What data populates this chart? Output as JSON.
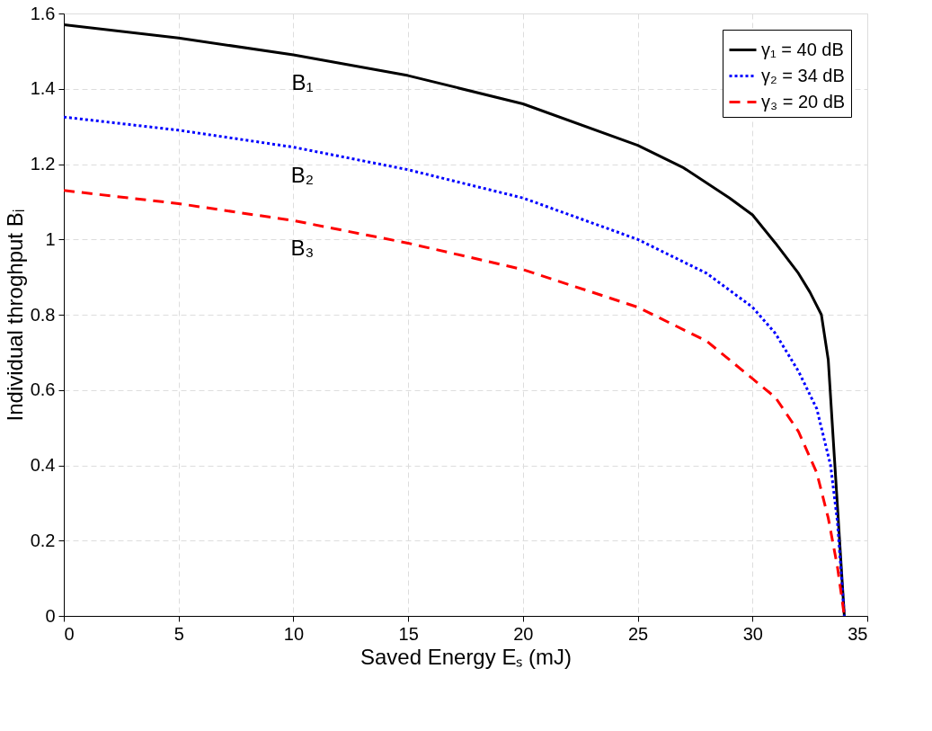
{
  "chart_data": {
    "type": "line",
    "xlabel": "Saved Energy Eₛ (mJ)",
    "ylabel": "Individual throghput Bᵢ",
    "xlim": [
      0,
      35
    ],
    "xticks": [
      0,
      5,
      10,
      15,
      20,
      25,
      30,
      35
    ],
    "ylim": [
      0,
      1.6
    ],
    "yticks": [
      0,
      0.2,
      0.4,
      0.6,
      0.8,
      1,
      1.2,
      1.4,
      1.6
    ],
    "grid": true,
    "legend": "top right",
    "series": [
      {
        "name": "γ₁ = 40 dB",
        "color": "#000000",
        "line_style": "solid",
        "x": [
          0,
          5,
          10,
          15,
          20,
          25,
          27,
          29,
          30,
          31,
          32,
          32.5,
          33,
          33.3,
          34
        ],
        "values": [
          1.57,
          1.535,
          1.49,
          1.435,
          1.36,
          1.25,
          1.19,
          1.11,
          1.065,
          0.99,
          0.91,
          0.86,
          0.8,
          0.68,
          0
        ]
      },
      {
        "name": "γ₂ = 34 dB",
        "color": "#0000ff",
        "line_style": "dotted",
        "x": [
          0,
          5,
          10,
          15,
          20,
          25,
          28,
          30,
          31,
          32,
          32.8,
          33.4,
          33.7,
          34
        ],
        "values": [
          1.325,
          1.29,
          1.245,
          1.185,
          1.11,
          1.0,
          0.91,
          0.82,
          0.75,
          0.65,
          0.55,
          0.4,
          0.25,
          0
        ]
      },
      {
        "name": "γ₃ = 20 dB",
        "color": "#ff0000",
        "line_style": "dashed",
        "x": [
          0,
          5,
          10,
          15,
          20,
          25,
          28,
          30,
          31,
          32,
          32.8,
          33.3,
          33.7,
          34
        ],
        "values": [
          1.13,
          1.095,
          1.05,
          0.99,
          0.92,
          0.82,
          0.73,
          0.63,
          0.58,
          0.49,
          0.38,
          0.26,
          0.13,
          0
        ]
      }
    ],
    "annotations": [
      "B₁",
      "B₂",
      "B₃"
    ]
  }
}
